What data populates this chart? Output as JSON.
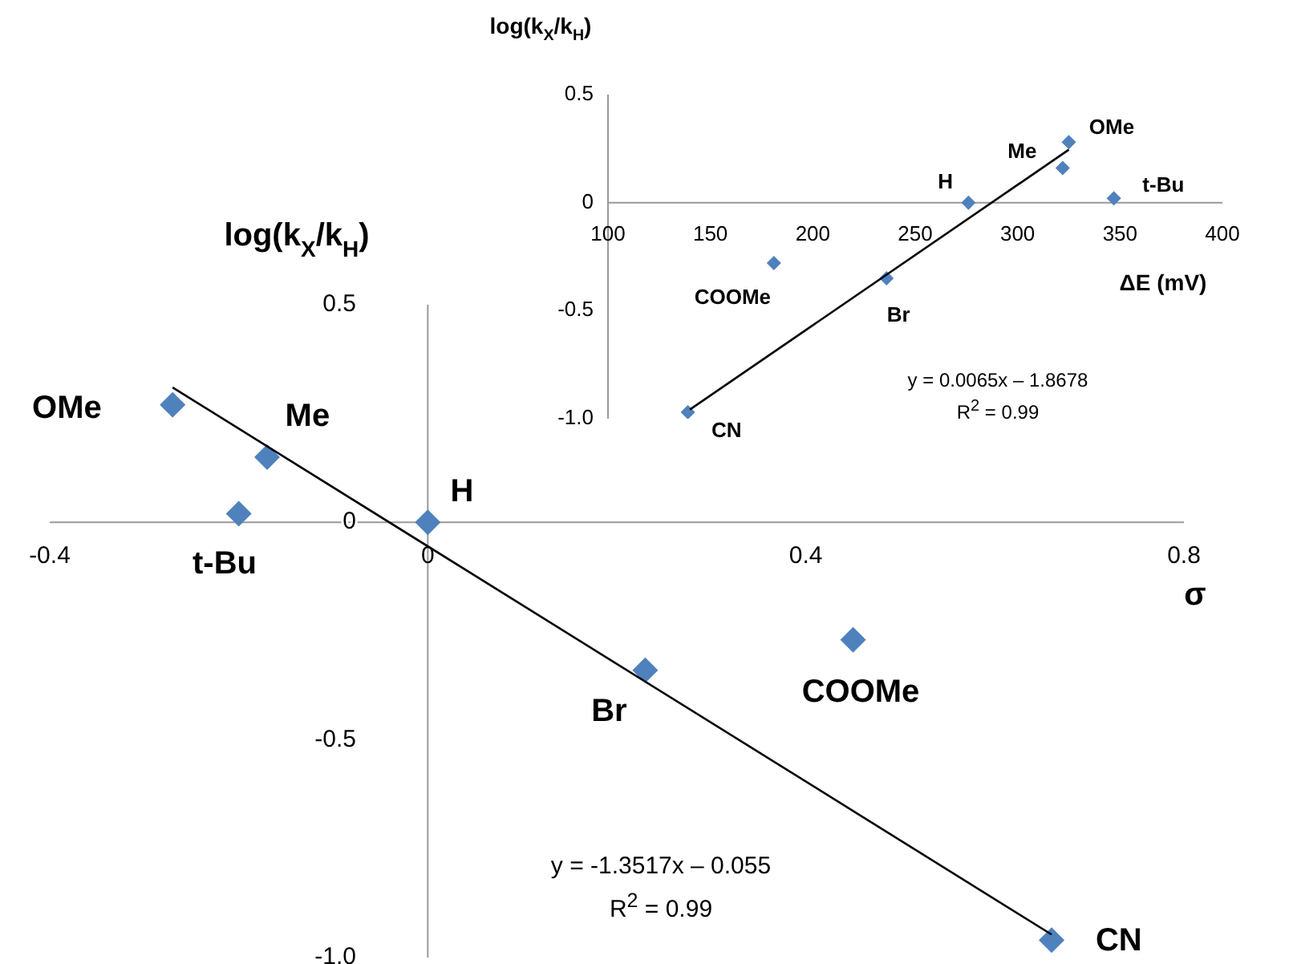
{
  "chart_data": [
    {
      "type": "scatter",
      "xlabel": "σ",
      "ylabel": "log(k$_{X}$/k$_{H}$)",
      "xlim": [
        -0.4,
        0.8
      ],
      "ylim": [
        -1.0,
        0.5
      ],
      "xticks": [
        -0.4,
        0,
        0.4,
        0.8
      ],
      "yticks": [
        {
          "value": -1,
          "label": "-1.0"
        },
        -0.5,
        0,
        0.5
      ],
      "legend": false,
      "marker": "diamond",
      "series": [
        {
          "type": "scatter",
          "color": "#4f81bd",
          "x": [
            -0.27,
            -0.17,
            -0.2,
            0,
            0.23,
            0.45,
            0.66
          ],
          "values": [
            0.27,
            0.15,
            0.02,
            0,
            -0.34,
            -0.27,
            -0.96
          ]
        },
        {
          "type": "line",
          "marker": "none",
          "color": "#000000",
          "x": [
            -0.27,
            0.66
          ],
          "values": [
            0.31,
            -0.947
          ]
        }
      ],
      "annotations": [
        {
          "text": "OMe",
          "x": -0.27,
          "y": 0.27
        },
        {
          "text": "Me",
          "x": -0.17,
          "y": 0.15
        },
        {
          "text": "t-Bu",
          "x": -0.2,
          "y": 0.02
        },
        {
          "text": "H",
          "x": 0,
          "y": 0
        },
        {
          "text": "Br",
          "x": 0.23,
          "y": -0.34
        },
        {
          "text": "COOMe",
          "x": 0.45,
          "y": -0.27
        },
        {
          "text": "CN",
          "x": 0.66,
          "y": -0.96
        },
        "y = -1.3517x – 0.055",
        "R$^{2}$ = 0.99"
      ]
    },
    {
      "type": "scatter",
      "xlabel": "ΔE (mV)",
      "ylabel": "log(k$_{X}$/k$_{H}$)",
      "xlim": [
        100,
        400
      ],
      "ylim": [
        -1.0,
        0.5
      ],
      "xticks": [
        100,
        150,
        200,
        250,
        300,
        350,
        400
      ],
      "yticks": [
        {
          "value": -1,
          "label": "-1.0"
        },
        -0.5,
        0,
        0.5
      ],
      "grid": false,
      "legend": false,
      "marker": "diamond",
      "series": [
        {
          "type": "scatter",
          "color": "#4f81bd",
          "x": [
            139,
            181,
            236,
            276,
            322,
            325,
            347
          ],
          "values": [
            -0.97,
            -0.28,
            -0.35,
            0,
            0.16,
            0.28,
            0.02
          ]
        },
        {
          "type": "line",
          "marker": "none",
          "color": "#000000",
          "x": [
            140,
            325
          ],
          "values": [
            -0.958,
            0.245
          ]
        }
      ],
      "annotations": [
        {
          "text": "CN",
          "x": 139,
          "y": -0.97
        },
        {
          "text": "COOMe",
          "x": 181,
          "y": -0.28
        },
        {
          "text": "Br",
          "x": 236,
          "y": -0.35
        },
        {
          "text": "H",
          "x": 276,
          "y": 0
        },
        {
          "text": "Me",
          "x": 322,
          "y": 0.16
        },
        {
          "text": "OMe",
          "x": 325,
          "y": 0.28
        },
        {
          "text": "t-Bu",
          "x": 347,
          "y": 0.02
        },
        "y = 0.0065x – 1.8678",
        "R$^{2}$ = 0.99"
      ]
    }
  ]
}
